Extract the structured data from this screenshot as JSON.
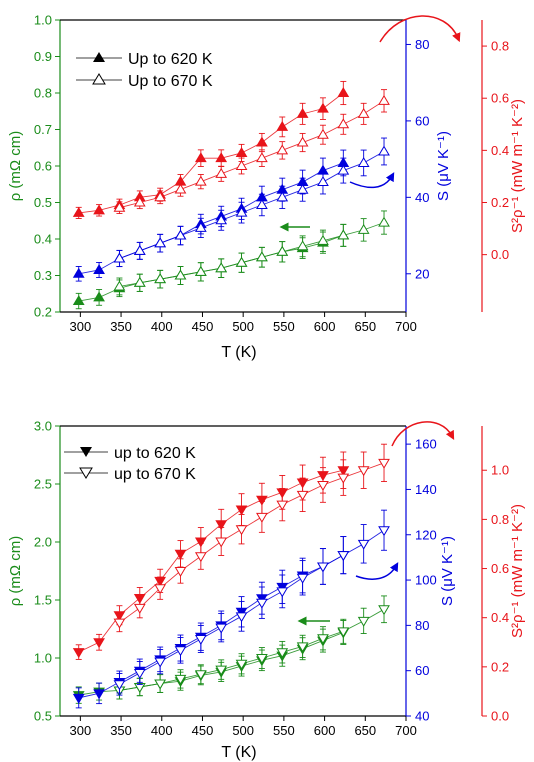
{
  "colors": {
    "rho": "#1a8c1a",
    "seebeck": "#0000dd",
    "pf": "#e8141a",
    "axis": "#000000"
  },
  "chart_data": [
    {
      "type": "scatter",
      "panel": "top",
      "xlabel": "T (K)",
      "xlim": [
        275,
        700
      ],
      "xticks": [
        300,
        350,
        400,
        450,
        500,
        550,
        600,
        650,
        700
      ],
      "legend": {
        "placement": "top-left",
        "entries": [
          {
            "label": "Up to 620 K",
            "marker": "filled-triangle-up"
          },
          {
            "label": "Up to 670 K",
            "marker": "open-triangle-up"
          }
        ]
      },
      "axes": {
        "left": {
          "label": "ρ (mΩ cm)",
          "lim": [
            0.2,
            1.0
          ],
          "ticks": [
            "0.2",
            "0.3",
            "0.4",
            "0.5",
            "0.6",
            "0.7",
            "0.8",
            "0.9",
            "1.0"
          ],
          "color": "#1a8c1a"
        },
        "right1": {
          "label": "S (μV K⁻¹)",
          "lim": [
            10,
            86.4
          ],
          "ticks": [
            "20",
            "40",
            "60",
            "80"
          ],
          "color": "#0000dd"
        },
        "right2": {
          "label": "S²ρ⁻¹ (mW m⁻¹ K⁻²)",
          "lim": [
            -0.22,
            0.9
          ],
          "ticks": [
            "0.0",
            "0.2",
            "0.4",
            "0.6",
            "0.8"
          ],
          "color": "#e8141a"
        }
      },
      "series": [
        {
          "quantity": "rho",
          "marker": "filled",
          "axis": "left",
          "x": [
            298,
            323,
            348,
            373,
            398,
            423,
            448,
            473,
            498,
            523,
            548,
            573,
            598,
            623
          ],
          "y": [
            0.23,
            0.24,
            0.265,
            0.28,
            0.29,
            0.3,
            0.31,
            0.32,
            0.335,
            0.35,
            0.365,
            0.375,
            0.39,
            0.41
          ]
        },
        {
          "quantity": "rho",
          "marker": "open",
          "axis": "left",
          "x": [
            348,
            373,
            398,
            423,
            448,
            473,
            498,
            523,
            548,
            573,
            598,
            623,
            648,
            673
          ],
          "y": [
            0.27,
            0.28,
            0.29,
            0.3,
            0.31,
            0.32,
            0.335,
            0.35,
            0.365,
            0.38,
            0.395,
            0.41,
            0.425,
            0.445
          ]
        },
        {
          "quantity": "S",
          "marker": "filled",
          "axis": "right1",
          "x": [
            298,
            323,
            348,
            373,
            398,
            423,
            448,
            473,
            498,
            523,
            548,
            573,
            598,
            623
          ],
          "y": [
            20,
            21,
            24,
            26,
            28,
            30,
            33,
            35,
            37,
            40,
            42,
            44,
            47,
            49
          ]
        },
        {
          "quantity": "S",
          "marker": "open",
          "axis": "right1",
          "x": [
            348,
            373,
            398,
            423,
            448,
            473,
            498,
            523,
            548,
            573,
            598,
            623,
            648,
            673
          ],
          "y": [
            24,
            26,
            28,
            30,
            32,
            34,
            36,
            38,
            40,
            42,
            44,
            47,
            49,
            52
          ]
        },
        {
          "quantity": "PF",
          "marker": "filled",
          "axis": "right2",
          "x": [
            298,
            323,
            348,
            373,
            398,
            423,
            448,
            473,
            498,
            523,
            548,
            573,
            598,
            623
          ],
          "y": [
            0.16,
            0.17,
            0.19,
            0.22,
            0.23,
            0.28,
            0.37,
            0.37,
            0.39,
            0.43,
            0.49,
            0.54,
            0.56,
            0.62
          ]
        },
        {
          "quantity": "PF",
          "marker": "open",
          "axis": "right2",
          "x": [
            348,
            373,
            398,
            423,
            448,
            473,
            498,
            523,
            548,
            573,
            598,
            623,
            648,
            673
          ],
          "y": [
            0.18,
            0.2,
            0.22,
            0.25,
            0.28,
            0.31,
            0.34,
            0.37,
            0.4,
            0.43,
            0.46,
            0.5,
            0.54,
            0.59
          ]
        }
      ],
      "error_bar_rel": 0.05
    },
    {
      "type": "scatter",
      "panel": "bottom",
      "xlabel": "T (K)",
      "xlim": [
        275,
        700
      ],
      "xticks": [
        300,
        350,
        400,
        450,
        500,
        550,
        600,
        650,
        700
      ],
      "legend": {
        "placement": "top-left",
        "entries": [
          {
            "label": "up to 620 K",
            "marker": "filled-triangle-down"
          },
          {
            "label": "up to 670 K",
            "marker": "open-triangle-down"
          }
        ]
      },
      "axes": {
        "left": {
          "label": "ρ (mΩ cm)",
          "lim": [
            0.5,
            3.0
          ],
          "ticks": [
            "0.5",
            "1.0",
            "1.5",
            "2.0",
            "2.5",
            "3.0"
          ],
          "color": "#1a8c1a"
        },
        "right1": {
          "label": "S (μV K⁻¹)",
          "lim": [
            40,
            168
          ],
          "ticks": [
            "40",
            "60",
            "80",
            "100",
            "120",
            "140",
            "160"
          ],
          "color": "#0000dd"
        },
        "right2": {
          "label": "S²ρ⁻¹ (mW m⁻¹ K⁻²)",
          "lim": [
            0.0,
            1.18
          ],
          "ticks": [
            "0.0",
            "0.2",
            "0.4",
            "0.6",
            "0.8",
            "1.0"
          ],
          "color": "#e8141a"
        }
      },
      "series": [
        {
          "quantity": "rho",
          "marker": "filled",
          "axis": "left",
          "x": [
            298,
            323,
            348,
            373,
            398,
            423,
            448,
            473,
            498,
            523,
            548,
            573,
            598,
            623
          ],
          "y": [
            0.68,
            0.71,
            0.72,
            0.75,
            0.78,
            0.8,
            0.85,
            0.88,
            0.93,
            0.98,
            1.02,
            1.08,
            1.15,
            1.22
          ]
        },
        {
          "quantity": "rho",
          "marker": "open",
          "axis": "left",
          "x": [
            348,
            373,
            398,
            423,
            448,
            473,
            498,
            523,
            548,
            573,
            598,
            623,
            648,
            673
          ],
          "y": [
            0.72,
            0.75,
            0.78,
            0.82,
            0.86,
            0.9,
            0.95,
            1.0,
            1.05,
            1.1,
            1.17,
            1.23,
            1.32,
            1.42
          ]
        },
        {
          "quantity": "S",
          "marker": "filled",
          "axis": "right1",
          "x": [
            298,
            323,
            348,
            373,
            398,
            423,
            448,
            473,
            498,
            523,
            548,
            573,
            598,
            623
          ],
          "y": [
            48,
            50,
            55,
            60,
            65,
            70,
            75,
            80,
            86,
            92,
            97,
            102,
            106,
            111
          ]
        },
        {
          "quantity": "S",
          "marker": "open",
          "axis": "right1",
          "x": [
            348,
            373,
            398,
            423,
            448,
            473,
            498,
            523,
            548,
            573,
            598,
            623,
            648,
            673
          ],
          "y": [
            54,
            59,
            64,
            69,
            74,
            79,
            84,
            90,
            95,
            101,
            106,
            111,
            116,
            122
          ]
        },
        {
          "quantity": "PF",
          "marker": "filled",
          "axis": "right2",
          "x": [
            298,
            323,
            348,
            373,
            398,
            423,
            448,
            473,
            498,
            523,
            548,
            573,
            598,
            623
          ],
          "y": [
            0.26,
            0.3,
            0.41,
            0.48,
            0.55,
            0.66,
            0.71,
            0.78,
            0.84,
            0.88,
            0.91,
            0.95,
            0.98,
            1.0
          ]
        },
        {
          "quantity": "PF",
          "marker": "open",
          "axis": "right2",
          "x": [
            348,
            373,
            398,
            423,
            448,
            473,
            498,
            523,
            548,
            573,
            598,
            623,
            648,
            673
          ],
          "y": [
            0.38,
            0.44,
            0.52,
            0.59,
            0.65,
            0.71,
            0.76,
            0.81,
            0.86,
            0.9,
            0.94,
            0.97,
            1.0,
            1.03
          ]
        }
      ],
      "error_bar_rel": 0.06
    }
  ]
}
